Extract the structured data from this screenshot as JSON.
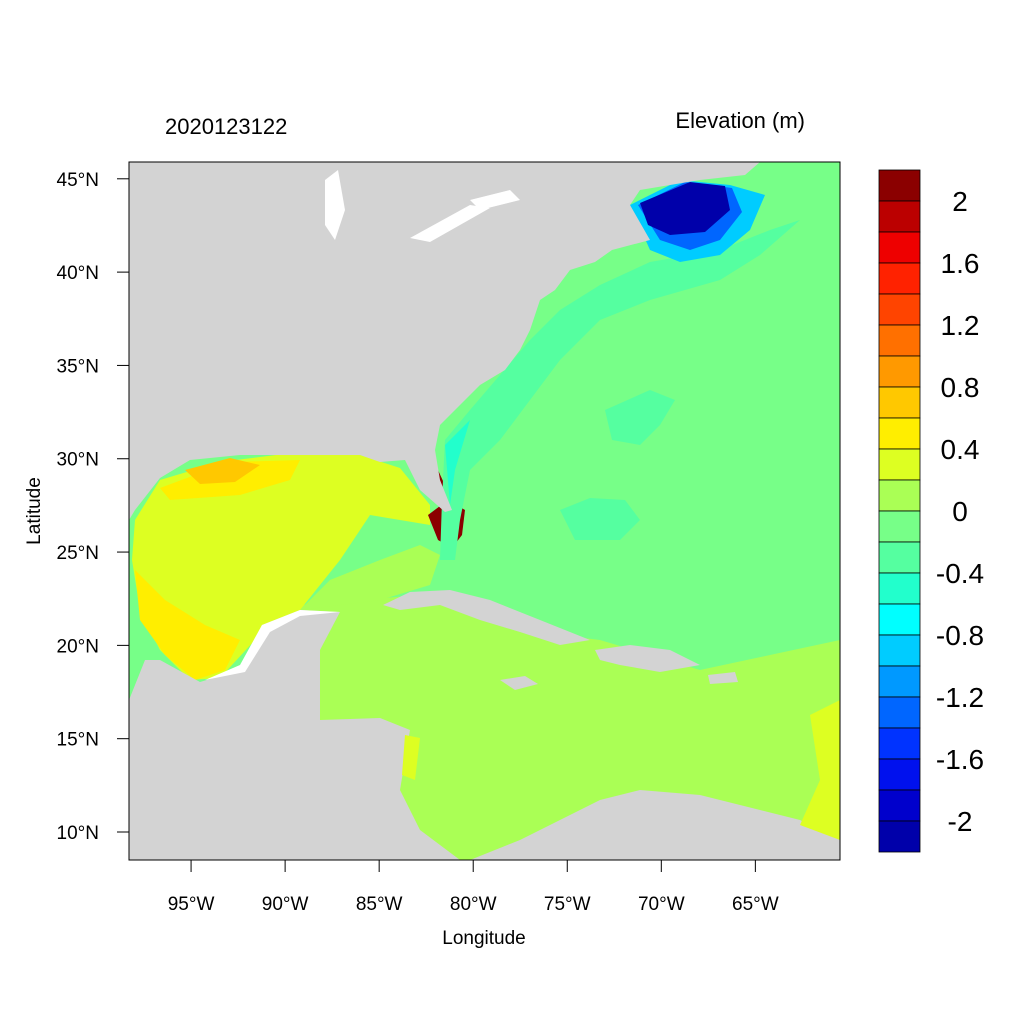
{
  "map": {
    "time_label": "2020123122",
    "variable_label": "Elevation (m)",
    "x_axis_label": "Longitude",
    "y_axis_label": "Latitude",
    "lon_range": [
      -98.3,
      -60.5
    ],
    "lat_range": [
      8.5,
      45.9
    ],
    "x_ticks": [
      {
        "value": -95,
        "label": "95°W"
      },
      {
        "value": -90,
        "label": "90°W"
      },
      {
        "value": -85,
        "label": "85°W"
      },
      {
        "value": -80,
        "label": "80°W"
      },
      {
        "value": -75,
        "label": "75°W"
      },
      {
        "value": -70,
        "label": "70°W"
      },
      {
        "value": -65,
        "label": "65°W"
      }
    ],
    "y_ticks": [
      {
        "value": 45,
        "label": "45°N"
      },
      {
        "value": 40,
        "label": "40°N"
      },
      {
        "value": 35,
        "label": "35°N"
      },
      {
        "value": 30,
        "label": "30°N"
      },
      {
        "value": 25,
        "label": "25°N"
      },
      {
        "value": 20,
        "label": "20°N"
      },
      {
        "value": 15,
        "label": "15°N"
      },
      {
        "value": 10,
        "label": "10°N"
      }
    ],
    "land_color": "#d3d3d3",
    "colorbar": {
      "bins_top_to_bottom": [
        "#8b0000",
        "#bb0000",
        "#ee0000",
        "#ff2200",
        "#ff4400",
        "#ff7000",
        "#ff9900",
        "#ffc800",
        "#ffee00",
        "#ddff22",
        "#aaff55",
        "#77ff88",
        "#55ffa0",
        "#22ffcc",
        "#00ffff",
        "#00ccff",
        "#0099ff",
        "#0066ff",
        "#0033ff",
        "#0011ee",
        "#0000cc",
        "#0000aa"
      ],
      "tick_labels": [
        "2",
        "1.6",
        "1.2",
        "0.8",
        "0.4",
        "0",
        "-0.4",
        "-0.8",
        "-1.2",
        "-1.6",
        "-2"
      ]
    }
  }
}
